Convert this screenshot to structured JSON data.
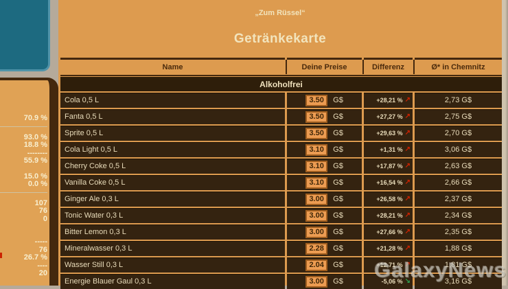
{
  "header": {
    "venue_name": "„Zum Rüssel“",
    "title": "Getränkekarte"
  },
  "sidebar": {
    "items": [
      {
        "type": "value",
        "text": "70.9 %"
      },
      {
        "type": "hr"
      },
      {
        "type": "value",
        "text": "93.0 %"
      },
      {
        "type": "value",
        "text": "18.8 %"
      },
      {
        "type": "dashes",
        "text": "--------"
      },
      {
        "type": "value",
        "text": "55.9 %"
      },
      {
        "type": "gap"
      },
      {
        "type": "value",
        "text": "15.0 %"
      },
      {
        "type": "value",
        "text": "0.0 %"
      },
      {
        "type": "hr"
      },
      {
        "type": "value",
        "text": "107"
      },
      {
        "type": "value",
        "text": "76"
      },
      {
        "type": "value",
        "text": "0"
      },
      {
        "type": "gap2"
      },
      {
        "type": "dashes",
        "text": "-----"
      },
      {
        "type": "value",
        "text": "76"
      },
      {
        "type": "value",
        "text": "26.7 %"
      },
      {
        "type": "dashes",
        "text": "----"
      },
      {
        "type": "value",
        "text": "20"
      }
    ]
  },
  "table": {
    "columns": [
      "Name",
      "Deine Preise",
      "Differenz",
      "Ø* in Chemnitz"
    ],
    "category": "Alkoholfrei",
    "currency": "G$",
    "rows": [
      {
        "name": "Cola 0,5 L",
        "price": "3.50",
        "diff": "+28,21 %",
        "trend": "up",
        "avg": "2,73 G$"
      },
      {
        "name": "Fanta 0,5 L",
        "price": "3.50",
        "diff": "+27,27 %",
        "trend": "up",
        "avg": "2,75 G$"
      },
      {
        "name": "Sprite 0,5 L",
        "price": "3.50",
        "diff": "+29,63 %",
        "trend": "up",
        "avg": "2,70 G$"
      },
      {
        "name": "Cola Light 0,5 L",
        "price": "3.10",
        "diff": "+1,31 %",
        "trend": "up",
        "avg": "3,06 G$"
      },
      {
        "name": "Cherry Coke 0,5 L",
        "price": "3.10",
        "diff": "+17,87 %",
        "trend": "up",
        "avg": "2,63 G$"
      },
      {
        "name": "Vanilla Coke 0,5 L",
        "price": "3.10",
        "diff": "+16,54 %",
        "trend": "up",
        "avg": "2,66 G$"
      },
      {
        "name": "Ginger Ale 0,3 L",
        "price": "3.00",
        "diff": "+26,58 %",
        "trend": "up",
        "avg": "2,37 G$"
      },
      {
        "name": "Tonic Water 0,3 L",
        "price": "3.00",
        "diff": "+28,21 %",
        "trend": "up",
        "avg": "2,34 G$"
      },
      {
        "name": "Bitter Lemon 0,3 L",
        "price": "3.00",
        "diff": "+27,66 %",
        "trend": "up",
        "avg": "2,35 G$"
      },
      {
        "name": "Mineralwasser 0,3 L",
        "price": "2.28",
        "diff": "+21,28 %",
        "trend": "up",
        "avg": "1,88 G$"
      },
      {
        "name": "Wasser Still 0,3 L",
        "price": "2.04",
        "diff": "+12,71 %",
        "trend": "up",
        "avg": "1,81 G$"
      },
      {
        "name": "Energie Blauer Gaul 0,3 L",
        "price": "3.00",
        "diff": "-5,06 %",
        "trend": "down",
        "avg": "3,16 G$"
      }
    ]
  },
  "icons": {
    "up": "↗",
    "down": "↘"
  },
  "watermark": {
    "text": "GalaxyNews"
  },
  "colors": {
    "page_gray": "#b5aa9b",
    "teal": "#1d6a80",
    "orange": "#dd9b4f",
    "dark_brown": "#44280e",
    "row_bg": "#342310",
    "cream_text": "#e9dcba",
    "input_bg": "#ec9c52",
    "trend_up_red": "#cc2200",
    "trend_down_green": "#2e9e4f"
  }
}
